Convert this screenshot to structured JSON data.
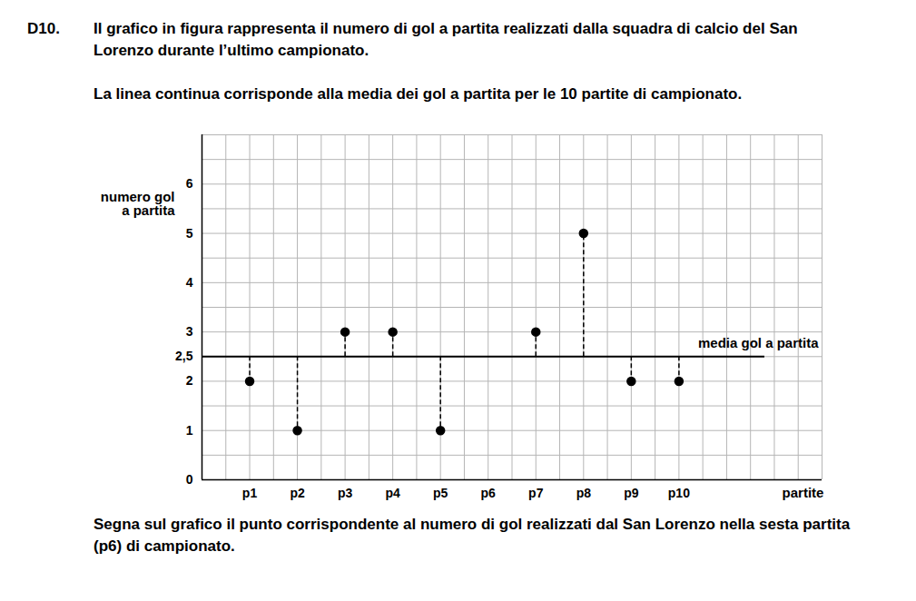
{
  "document": {
    "number": "D10.",
    "paragraphs": [
      "Il grafico in figura rappresenta il numero di gol a partita realizzati dalla squadra di calcio del San Lorenzo durante l’ultimo campionato.",
      "La linea continua corrisponde alla media dei gol a partita per le 10 partite di campionato."
    ],
    "question": "Segna sul grafico il punto corrispondente al numero di gol realizzati dal San Lorenzo nella sesta partita (p6) di campionato."
  },
  "chart_data": {
    "type": "scatter",
    "categories": [
      "p1",
      "p2",
      "p3",
      "p4",
      "p5",
      "p6",
      "p7",
      "p8",
      "p9",
      "p10"
    ],
    "values": [
      2,
      1,
      3,
      3,
      1,
      null,
      3,
      5,
      2,
      2
    ],
    "x_label": "partite",
    "y_label": "numero gol a partita",
    "ylim": [
      0,
      7
    ],
    "yticks": [
      0,
      1,
      2,
      {
        "value": 2.5,
        "label": "2,5"
      },
      3,
      4,
      5,
      6
    ],
    "reference_line": {
      "value": 2.5,
      "label": "media gol a partita"
    },
    "color": "#000000",
    "marker": "circle",
    "line_style": "dashed",
    "grid": true
  }
}
